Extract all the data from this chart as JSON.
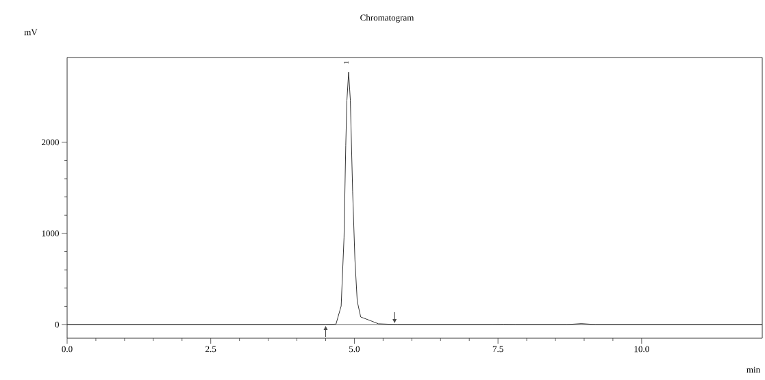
{
  "chart_data": {
    "type": "line",
    "title": "Chromatogram",
    "xlabel": "min",
    "ylabel": "mV",
    "x": [
      0,
      2.0,
      4.0,
      4.5,
      4.68,
      4.77,
      4.82,
      4.85,
      4.87,
      4.9,
      4.93,
      4.97,
      5.01,
      5.05,
      5.11,
      5.27,
      5.42,
      5.75,
      6.5,
      7.4,
      7.6,
      7.8,
      8.7,
      8.95,
      9.2,
      10.0,
      12.1
    ],
    "series": [
      {
        "color": "#333333",
        "values": [
          0,
          0,
          0,
          0,
          5,
          203,
          955,
          1963,
          2459,
          2770,
          2459,
          1459,
          707,
          256,
          83,
          45,
          8,
          0,
          0,
          0,
          3,
          0,
          0,
          10,
          0,
          0,
          0
        ]
      }
    ],
    "xlim": [
      0,
      12.1
    ],
    "ylim": [
      -150,
      2930
    ],
    "xticks": [
      {
        "value": 0,
        "label": "0.0"
      },
      2.5,
      {
        "value": 5,
        "label": "5.0"
      },
      7.5,
      {
        "value": 10,
        "label": "10.0"
      }
    ],
    "yticks": [
      0,
      1000,
      2000
    ],
    "annotations": [
      {
        "text": "1",
        "x": 4.9,
        "y": 2770
      }
    ],
    "marker": "none",
    "line_style": "solid"
  }
}
